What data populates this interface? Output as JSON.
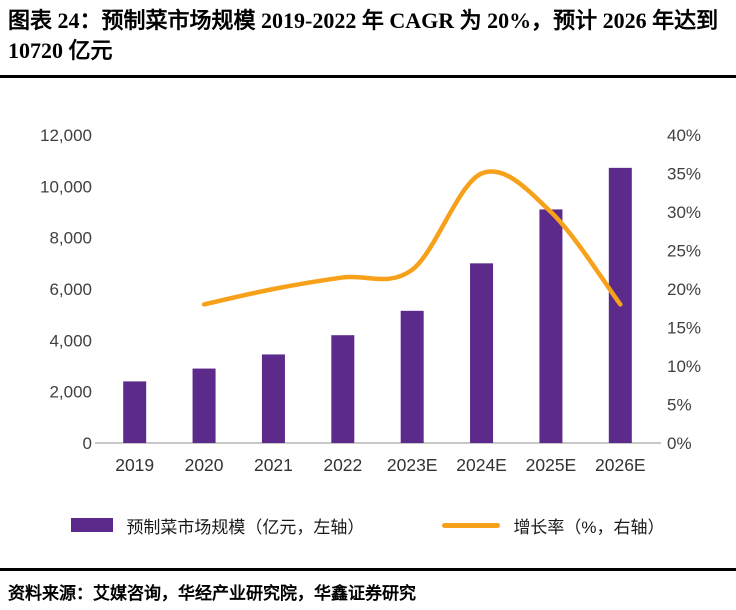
{
  "title": "图表 24：预制菜市场规模 2019-2022 年 CAGR 为 20%，预计 2026 年达到 10720 亿元",
  "footer": {
    "source": "资料来源：艾媒咨询，华经产业研究院，华鑫证券研究"
  },
  "legend": [
    {
      "label": "预制菜市场规模（亿元，左轴）",
      "type": "bar",
      "color": "#5b2a8a"
    },
    {
      "label": "增长率（%，右轴）",
      "type": "line",
      "color": "#f7a11a"
    }
  ],
  "chart_data": {
    "type": "bar",
    "subtype": "combo-bar-line",
    "categories": [
      "2019",
      "2020",
      "2021",
      "2022",
      "2023E",
      "2024E",
      "2025E",
      "2026E"
    ],
    "series": [
      {
        "name": "预制菜市场规模（亿元，左轴）",
        "type": "bar",
        "axis": "left",
        "color": "#5b2a8a",
        "values": [
          2400,
          2900,
          3450,
          4200,
          5150,
          7000,
          9100,
          10720
        ]
      },
      {
        "name": "增长率（%，右轴）",
        "type": "line",
        "axis": "right",
        "color": "#f7a11a",
        "values": [
          null,
          18,
          20,
          21.5,
          22.5,
          35,
          30,
          18
        ]
      }
    ],
    "left_axis": {
      "min": 0,
      "max": 12000,
      "step": 2000,
      "tick_labels": [
        "12,000",
        "10,000",
        "8,000",
        "6,000",
        "4,000",
        "2,000",
        "0"
      ]
    },
    "right_axis": {
      "min": 0,
      "max": 40,
      "step": 5,
      "tick_labels": [
        "40%",
        "35%",
        "30%",
        "25%",
        "20%",
        "15%",
        "10%",
        "5%",
        "0%"
      ]
    },
    "grid": false,
    "legend_position": "bottom"
  }
}
